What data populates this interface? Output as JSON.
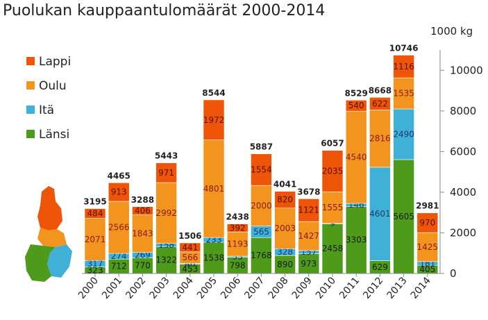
{
  "chart_data": {
    "type": "bar",
    "stacked": true,
    "title": "Puolukan kauppaantulomäärät 2000-2014",
    "ylabel": "1000 kg",
    "ylim": [
      0,
      11000
    ],
    "yticks": [
      "0",
      "2000",
      "4000",
      "6000",
      "8000",
      "10000"
    ],
    "ytick_values": [
      0,
      2000,
      4000,
      6000,
      8000,
      10000
    ],
    "grid": false,
    "legend": {
      "placement": "left",
      "order": [
        "Lappi",
        "Oulu",
        "Itä",
        "Länsi"
      ]
    },
    "categories": [
      "2000",
      "2001",
      "2002",
      "2003",
      "2004",
      "2005",
      "2006",
      "2007",
      "2008",
      "2009",
      "2010",
      "2011",
      "2012",
      "2013",
      "2014"
    ],
    "totals": [
      "3195",
      "4465",
      "3288",
      "5443",
      "1506",
      "8544",
      "2438",
      "5887",
      "4041",
      "3678",
      "6057",
      "8529",
      "8668",
      "10746",
      "2981"
    ],
    "series": [
      {
        "name": "Länsi",
        "color": "#4e9a1a",
        "label_color": "#1a1a1a",
        "values": [
          323,
          712,
          770,
          1322,
          453,
          1538,
          798,
          1768,
          890,
          973,
          2458,
          3303,
          629,
          5605,
          405
        ]
      },
      {
        "name": "Itä",
        "color": "#3fb0d6",
        "label_color": "#1a3a6e",
        "values": [
          317,
          274,
          269,
          158,
          46,
          233,
          55,
          565,
          328,
          157,
          9,
          146,
          4601,
          2490,
          181
        ]
      },
      {
        "name": "Oulu",
        "color": "#f3941e",
        "label_color": "#8a1a10",
        "values": [
          2071,
          2566,
          1843,
          2992,
          566,
          4801,
          1193,
          2000,
          2003,
          1427,
          1555,
          4540,
          2816,
          1535,
          1425
        ]
      },
      {
        "name": "Lappi",
        "color": "#ef5508",
        "label_color": "#5a0f05",
        "values": [
          484,
          913,
          406,
          971,
          441,
          1972,
          392,
          1554,
          820,
          1121,
          2035,
          540,
          622,
          1116,
          970
        ]
      }
    ]
  },
  "map": {
    "name": "finland-regions-map",
    "colors": {
      "Lappi": "#ef5508",
      "Oulu": "#f3941e",
      "Itä": "#3fb0d6",
      "Länsi": "#4e9a1a"
    }
  }
}
